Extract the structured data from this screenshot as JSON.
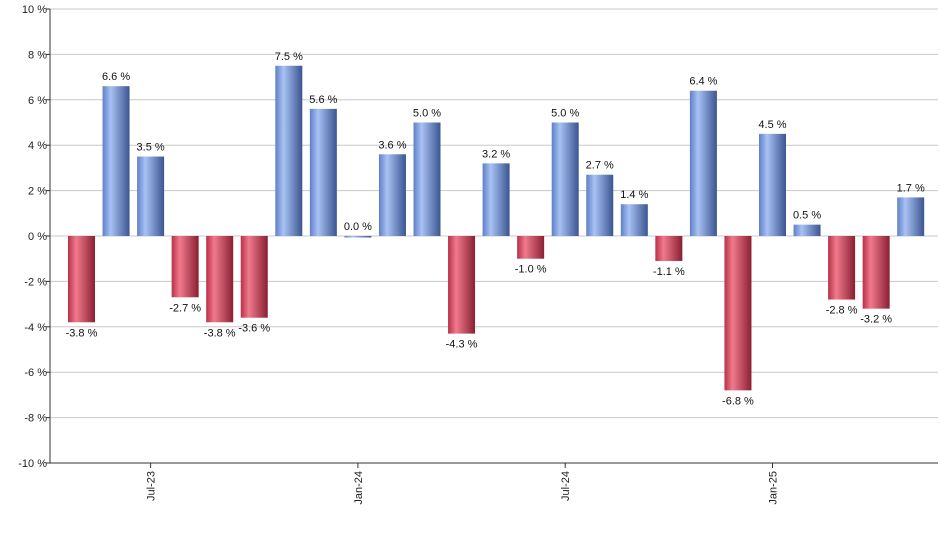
{
  "chart_data": {
    "type": "bar",
    "values": [
      -3.8,
      6.6,
      3.5,
      -2.7,
      -3.8,
      -3.6,
      7.5,
      5.6,
      0.0,
      3.6,
      5.0,
      -4.3,
      3.2,
      -1.0,
      5.0,
      2.7,
      1.4,
      -1.1,
      6.4,
      -6.8,
      4.5,
      0.5,
      -2.8,
      -3.2,
      1.7
    ],
    "value_labels": [
      "-3.8 %",
      "6.6 %",
      "3.5 %",
      "-2.7 %",
      "-3.8 %",
      "-3.6 %",
      "7.5 %",
      "5.6 %",
      "0.0 %",
      "3.6 %",
      "5.0 %",
      "-4.3 %",
      "3.2 %",
      "-1.0 %",
      "5.0 %",
      "2.7 %",
      "1.4 %",
      "-1.1 %",
      "6.4 %",
      "-6.8 %",
      "4.5 %",
      "0.5 %",
      "-2.8 %",
      "-3.2 %",
      "1.7 %"
    ],
    "x_ticks": [
      {
        "label": "Jul-23",
        "index": 2
      },
      {
        "label": "Jan-24",
        "index": 8
      },
      {
        "label": "Jul-24",
        "index": 14
      },
      {
        "label": "Jan-25",
        "index": 20
      }
    ],
    "y_ticks": [
      {
        "value": 10,
        "label": "10 %"
      },
      {
        "value": 8,
        "label": "8 %"
      },
      {
        "value": 6,
        "label": "6 %"
      },
      {
        "value": 4,
        "label": "4 %"
      },
      {
        "value": 2,
        "label": "2 %"
      },
      {
        "value": 0,
        "label": "0 %"
      },
      {
        "value": -2,
        "label": "-2 %"
      },
      {
        "value": -4,
        "label": "-4 %"
      },
      {
        "value": -6,
        "label": "-6 %"
      },
      {
        "value": -8,
        "label": "-8 %"
      },
      {
        "value": -10,
        "label": "-10 %"
      }
    ],
    "ylim": [
      -10,
      10
    ],
    "grid": true,
    "colors": {
      "positive": "#7a9ee6",
      "negative": "#d8485e",
      "grid": "#c8c8c8",
      "axis": "#333333"
    }
  }
}
